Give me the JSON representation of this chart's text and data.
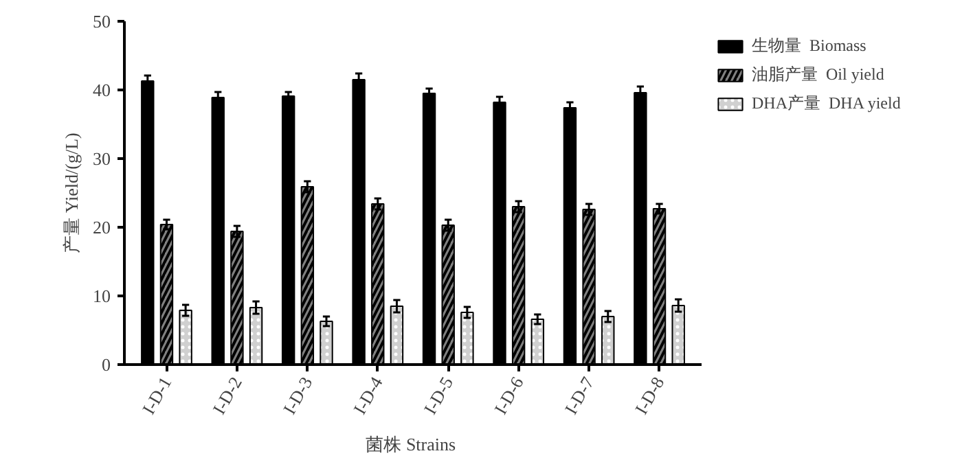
{
  "chart_data": {
    "type": "bar",
    "xlabel": "菌株  Strains",
    "ylabel": "产量 Yield/(g/L)",
    "categories": [
      "I-D-1",
      "I-D-2",
      "I-D-3",
      "I-D-4",
      "I-D-5",
      "I-D-6",
      "I-D-7",
      "I-D-8"
    ],
    "series": [
      {
        "name": "生物量  Biomass",
        "color": "#000000",
        "values": [
          41.3,
          38.9,
          39.1,
          41.5,
          39.5,
          38.2,
          37.4,
          39.6
        ],
        "errors": [
          0.8,
          0.8,
          0.6,
          0.9,
          0.7,
          0.8,
          0.8,
          0.9
        ]
      },
      {
        "name": "油脂产量  Oil yield",
        "color": "#808080",
        "values": [
          20.4,
          19.4,
          25.9,
          23.4,
          20.3,
          23.0,
          22.6,
          22.7
        ],
        "errors": [
          0.7,
          0.8,
          0.8,
          0.8,
          0.8,
          0.8,
          0.8,
          0.7
        ]
      },
      {
        "name": "DHA产量  DHA yield",
        "color": "#d0d0d0",
        "values": [
          7.9,
          8.3,
          6.3,
          8.5,
          7.6,
          6.6,
          7.0,
          8.6
        ],
        "errors": [
          0.8,
          0.9,
          0.7,
          0.9,
          0.8,
          0.7,
          0.8,
          0.9
        ]
      }
    ],
    "ylim": [
      0,
      50
    ],
    "yticks": [
      0,
      10,
      20,
      30,
      40,
      50
    ],
    "grid": false,
    "legend": "top right"
  }
}
